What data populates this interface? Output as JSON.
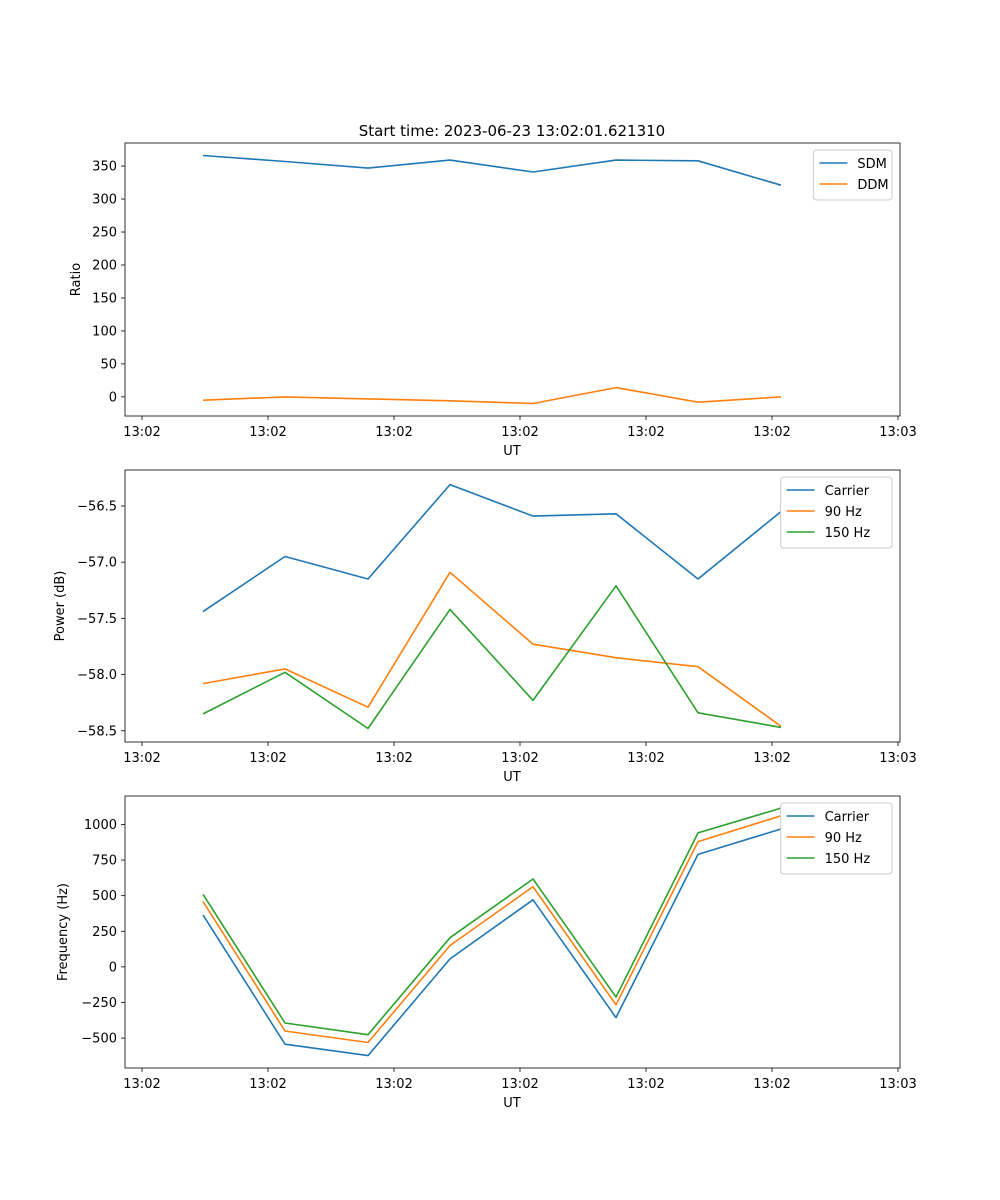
{
  "title": "Start time: 2023-06-23 13:02:01.621310",
  "chart_data": [
    {
      "type": "line",
      "xlabel": "UT",
      "ylabel": "Ratio",
      "xticklabels": [
        "13:02",
        "13:02",
        "13:02",
        "13:02",
        "13:02",
        "13:02",
        "13:03"
      ],
      "yticks": [
        0,
        50,
        100,
        150,
        200,
        250,
        300,
        350
      ],
      "ylim": [
        -29,
        385
      ],
      "legend_position": "upper-right",
      "series": [
        {
          "name": "SDM",
          "color": "#1f77b4",
          "values": [
            366,
            357,
            347,
            359,
            341,
            359,
            358,
            321
          ]
        },
        {
          "name": "DDM",
          "color": "#ff7f0e",
          "values": [
            -5,
            0,
            -3,
            -6,
            -10,
            14,
            -8,
            0
          ]
        }
      ]
    },
    {
      "type": "line",
      "xlabel": "UT",
      "ylabel": "Power (dB)",
      "xticklabels": [
        "13:02",
        "13:02",
        "13:02",
        "13:02",
        "13:02",
        "13:02",
        "13:03"
      ],
      "yticks": [
        -58.5,
        -58.0,
        -57.5,
        -57.0,
        -56.5
      ],
      "yticklabels": [
        "−58.5",
        "−58.0",
        "−57.5",
        "−57.0",
        "−56.5"
      ],
      "ylim": [
        -58.6,
        -56.18
      ],
      "legend_position": "upper-right",
      "series": [
        {
          "name": "Carrier",
          "color": "#1f77b4",
          "values": [
            -57.44,
            -56.95,
            -57.15,
            -56.31,
            -56.59,
            -56.57,
            -57.15,
            -56.55
          ]
        },
        {
          "name": "90 Hz",
          "color": "#ff7f0e",
          "values": [
            -58.08,
            -57.95,
            -58.29,
            -57.09,
            -57.73,
            -57.85,
            -57.93,
            -58.46
          ]
        },
        {
          "name": "150 Hz",
          "color": "#2ca02c",
          "values": [
            -58.35,
            -57.98,
            -58.48,
            -57.42,
            -58.23,
            -57.21,
            -58.34,
            -58.47
          ]
        }
      ]
    },
    {
      "type": "line",
      "xlabel": "UT",
      "ylabel": "Frequency (Hz)",
      "xticklabels": [
        "13:02",
        "13:02",
        "13:02",
        "13:02",
        "13:02",
        "13:02",
        "13:03"
      ],
      "yticks": [
        -500,
        -250,
        0,
        250,
        500,
        750,
        1000
      ],
      "yticklabels": [
        "−500",
        "−250",
        "0",
        "250",
        "500",
        "750",
        "1000"
      ],
      "ylim": [
        -710,
        1200
      ],
      "legend_position": "upper-right",
      "series": [
        {
          "name": "Carrier",
          "color": "#1f77b4",
          "values": [
            365,
            -543,
            -623,
            56,
            471,
            -356,
            790,
            968
          ]
        },
        {
          "name": "90 Hz",
          "color": "#ff7f0e",
          "values": [
            459,
            -450,
            -531,
            150,
            563,
            -266,
            880,
            1061
          ]
        },
        {
          "name": "150 Hz",
          "color": "#2ca02c",
          "values": [
            510,
            -394,
            -476,
            205,
            617,
            -212,
            941,
            1115
          ]
        }
      ]
    }
  ]
}
